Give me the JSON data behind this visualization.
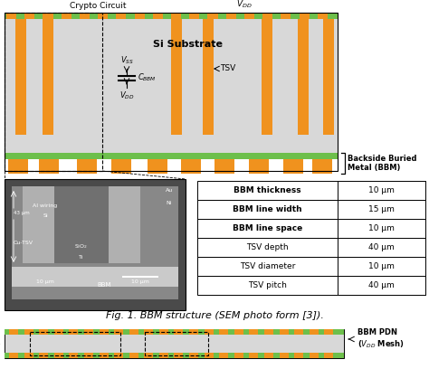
{
  "title": "Fig. 1. BBM structure (SEM photo form [3]).",
  "orange": "#F0921E",
  "green": "#6DBF4B",
  "light_gray": "#D8D8D8",
  "sem_dark": "#4A4A4A",
  "sem_mid": "#888888",
  "sem_light": "#B0B0B0",
  "sem_lighter": "#CACACA",
  "white": "#FFFFFF",
  "black": "#000000",
  "table_rows": [
    [
      "BBM thickness",
      "10 μm"
    ],
    [
      "BBM line width",
      "15 μm"
    ],
    [
      "BBM line space",
      "10 μm"
    ],
    [
      "TSV depth",
      "40 μm"
    ],
    [
      "TSV diameter",
      "10 μm"
    ],
    [
      "TSV pitch",
      "40 μm"
    ]
  ]
}
